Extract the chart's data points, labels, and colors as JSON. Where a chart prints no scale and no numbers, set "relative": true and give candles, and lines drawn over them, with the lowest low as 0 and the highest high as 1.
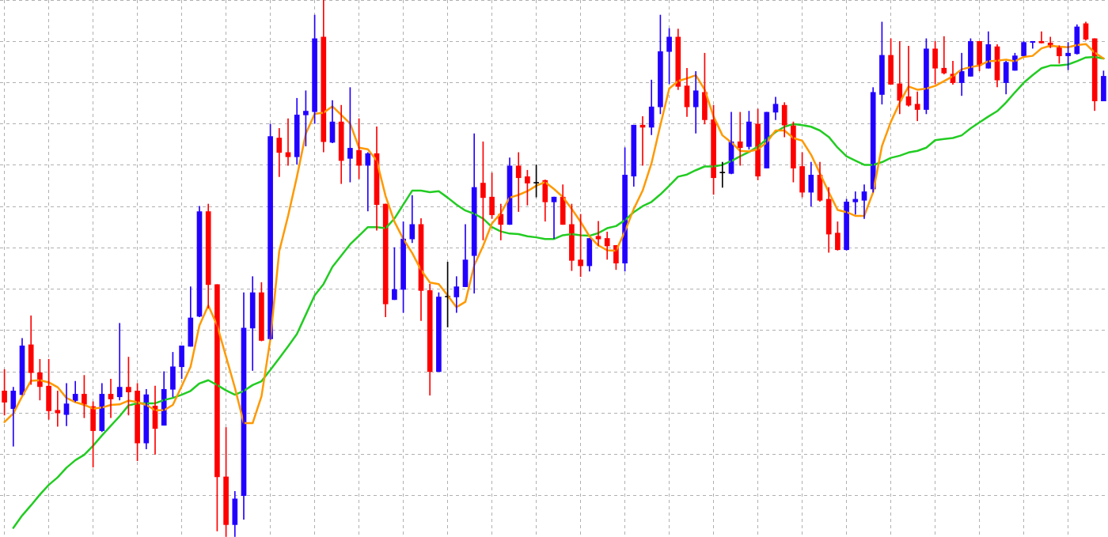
{
  "chart_data": {
    "type": "candlestick",
    "relative": true,
    "grid": true,
    "tick_labels": false,
    "marker": "none",
    "categories": [
      null,
      null,
      null,
      null,
      null,
      null,
      null,
      null,
      null,
      null,
      null,
      null,
      null,
      null,
      null,
      null,
      null,
      null,
      null,
      null,
      null,
      null,
      null,
      null,
      null,
      null,
      null,
      null,
      null,
      null,
      null,
      null,
      null,
      null,
      null,
      null,
      null,
      null,
      null,
      null,
      null,
      null,
      null,
      null,
      null,
      null,
      null,
      null,
      null,
      null,
      null,
      null,
      null,
      null,
      null,
      null,
      null,
      null,
      null,
      null,
      null,
      null,
      null,
      null,
      null,
      null,
      null,
      null,
      null,
      null,
      null,
      null,
      null,
      null,
      null,
      null,
      null,
      null,
      null,
      null,
      null,
      null,
      null,
      null,
      null,
      null,
      null,
      null,
      null,
      null,
      null,
      null,
      null,
      null,
      null,
      null,
      null,
      null,
      null,
      null,
      null,
      null,
      null,
      null,
      null,
      null,
      null,
      null,
      null,
      null,
      null,
      null,
      null,
      null,
      null,
      null,
      null,
      null,
      null,
      null,
      null,
      null,
      null,
      null,
      null
    ],
    "ohlc": [
      [
        0.272,
        0.312,
        0.227,
        0.251
      ],
      [
        0.239,
        0.279,
        0.169,
        0.272
      ],
      [
        0.265,
        0.37,
        0.265,
        0.356
      ],
      [
        0.358,
        0.412,
        0.284,
        0.306
      ],
      [
        0.306,
        0.331,
        0.255,
        0.28
      ],
      [
        0.281,
        0.331,
        0.219,
        0.235
      ],
      [
        0.236,
        0.272,
        0.206,
        0.231
      ],
      [
        0.228,
        0.286,
        0.207,
        0.248
      ],
      [
        0.254,
        0.29,
        0.252,
        0.266
      ],
      [
        0.266,
        0.301,
        0.222,
        0.247
      ],
      [
        0.243,
        0.252,
        0.13,
        0.198
      ],
      [
        0.198,
        0.286,
        0.196,
        0.266
      ],
      [
        0.266,
        0.294,
        0.222,
        0.257
      ],
      [
        0.261,
        0.398,
        0.255,
        0.279
      ],
      [
        0.279,
        0.335,
        0.227,
        0.27
      ],
      [
        0.272,
        0.286,
        0.142,
        0.175
      ],
      [
        0.175,
        0.275,
        0.164,
        0.265
      ],
      [
        0.244,
        0.281,
        0.154,
        0.202
      ],
      [
        0.208,
        0.308,
        0.208,
        0.275
      ],
      [
        0.275,
        0.344,
        0.261,
        0.317
      ],
      [
        0.317,
        0.356,
        0.295,
        0.356
      ],
      [
        0.355,
        0.466,
        0.355,
        0.408
      ],
      [
        0.411,
        0.616,
        0.41,
        0.606
      ],
      [
        0.606,
        0.62,
        0.426,
        0.47
      ],
      [
        0.47,
        0.47,
        0.011,
        0.112
      ],
      [
        0.112,
        0.204,
        0,
        0.023
      ],
      [
        0.023,
        0.085,
        0,
        0.071
      ],
      [
        0.077,
        0.455,
        0.033,
        0.389
      ],
      [
        0.389,
        0.485,
        0.31,
        0.455
      ],
      [
        0.455,
        0.474,
        0.365,
        0.366
      ],
      [
        0.369,
        0.769,
        0.368,
        0.746
      ],
      [
        0.743,
        0.761,
        0.671,
        0.716
      ],
      [
        0.716,
        0.779,
        0.692,
        0.708
      ],
      [
        0.708,
        0.817,
        0.694,
        0.786
      ],
      [
        0.786,
        0.831,
        0.728,
        0.793
      ],
      [
        0.792,
        0.972,
        0.77,
        0.928
      ],
      [
        0.931,
        1,
        0.717,
        0.736
      ],
      [
        0.735,
        0.813,
        0.734,
        0.773
      ],
      [
        0.773,
        0.804,
        0.658,
        0.701
      ],
      [
        0.705,
        0.837,
        0.661,
        0.724
      ],
      [
        0.72,
        0.779,
        0.667,
        0.692
      ],
      [
        0.692,
        0.716,
        0.607,
        0.714
      ],
      [
        0.714,
        0.764,
        0.571,
        0.619
      ],
      [
        0.62,
        0.62,
        0.41,
        0.434
      ],
      [
        0.442,
        0.539,
        0.442,
        0.461
      ],
      [
        0.461,
        0.587,
        0.418,
        0.555
      ],
      [
        0.555,
        0.636,
        0.548,
        0.582
      ],
      [
        0.582,
        0.593,
        0.403,
        0.459
      ],
      [
        0.459,
        0.471,
        0.264,
        0.308
      ],
      [
        0.308,
        0.455,
        0.308,
        0.447
      ],
      [
        0.447,
        0.512,
        0.391,
        0.447
      ],
      [
        0.447,
        0.485,
        0.418,
        0.466
      ],
      [
        0.466,
        0.582,
        0.466,
        0.516
      ],
      [
        0.524,
        0.751,
        0.454,
        0.651
      ],
      [
        0.659,
        0.736,
        0.553,
        0.632
      ],
      [
        0.633,
        0.678,
        0.593,
        0.6
      ],
      [
        0.601,
        0.62,
        0.553,
        0.582
      ],
      [
        0.582,
        0.706,
        0.582,
        0.691
      ],
      [
        0.691,
        0.716,
        0.606,
        0.669
      ],
      [
        0.671,
        0.683,
        0.618,
        0.659
      ],
      [
        0.659,
        0.693,
        0.633,
        0.659
      ],
      [
        0.664,
        0.665,
        0.588,
        0.624
      ],
      [
        0.624,
        0.633,
        0.556,
        0.633
      ],
      [
        0.633,
        0.656,
        0.582,
        0.582
      ],
      [
        0.582,
        0.62,
        0.496,
        0.515
      ],
      [
        0.516,
        0.601,
        0.485,
        0.505
      ],
      [
        0.505,
        0.556,
        0.495,
        0.556
      ],
      [
        0.56,
        0.588,
        0.543,
        0.555
      ],
      [
        0.556,
        0.568,
        0.517,
        0.542
      ],
      [
        0.543,
        0.543,
        0.498,
        0.51
      ],
      [
        0.51,
        0.725,
        0.495,
        0.674
      ],
      [
        0.672,
        0.767,
        0.653,
        0.767
      ],
      [
        0.767,
        0.783,
        0.692,
        0.763
      ],
      [
        0.763,
        0.851,
        0.749,
        0.801
      ],
      [
        0.801,
        0.972,
        0.788,
        0.904
      ],
      [
        0.904,
        0.947,
        0.844,
        0.931
      ],
      [
        0.931,
        0.946,
        0.833,
        0.839
      ],
      [
        0.84,
        0.873,
        0.783,
        0.801
      ],
      [
        0.801,
        0.867,
        0.752,
        0.831
      ],
      [
        0.828,
        0.901,
        0.769,
        0.777
      ],
      [
        0.777,
        0.804,
        0.638,
        0.669
      ],
      [
        0.678,
        0.698,
        0.651,
        0.678
      ],
      [
        0.677,
        0.791,
        0.676,
        0.736
      ],
      [
        0.736,
        0.791,
        0.692,
        0.725
      ],
      [
        0.727,
        0.793,
        0.722,
        0.773
      ],
      [
        0.769,
        0.797,
        0.665,
        0.672
      ],
      [
        0.687,
        0.791,
        0.687,
        0.791
      ],
      [
        0.791,
        0.819,
        0.777,
        0.806
      ],
      [
        0.804,
        0.809,
        0.745,
        0.767
      ],
      [
        0.766,
        0.773,
        0.661,
        0.687
      ],
      [
        0.69,
        0.716,
        0.633,
        0.642
      ],
      [
        0.642,
        0.698,
        0.616,
        0.674
      ],
      [
        0.674,
        0.698,
        0.625,
        0.627
      ],
      [
        0.629,
        0.651,
        0.53,
        0.564
      ],
      [
        0.566,
        0.587,
        0.534,
        0.535
      ],
      [
        0.535,
        0.629,
        0.534,
        0.624
      ],
      [
        0.624,
        0.643,
        0.601,
        0.629
      ],
      [
        0.627,
        0.656,
        0.593,
        0.643
      ],
      [
        0.648,
        0.837,
        0.642,
        0.828
      ],
      [
        0.824,
        0.959,
        0.806,
        0.897
      ],
      [
        0.897,
        0.928,
        0.843,
        0.843
      ],
      [
        0.844,
        0.923,
        0.788,
        0.813
      ],
      [
        0.82,
        0.914,
        0.802,
        0.804
      ],
      [
        0.806,
        0.829,
        0.775,
        0.796
      ],
      [
        0.796,
        0.928,
        0.788,
        0.909
      ],
      [
        0.909,
        0.923,
        0.844,
        0.873
      ],
      [
        0.873,
        0.932,
        0.862,
        0.864
      ],
      [
        0.862,
        0.886,
        0.843,
        0.846
      ],
      [
        0.846,
        0.901,
        0.822,
        0.867
      ],
      [
        0.858,
        0.928,
        0.858,
        0.923
      ],
      [
        0.923,
        0.923,
        0.868,
        0.878
      ],
      [
        0.873,
        0.941,
        0.873,
        0.917
      ],
      [
        0.913,
        0.917,
        0.838,
        0.851
      ],
      [
        0.846,
        0.886,
        0.825,
        0.884
      ],
      [
        0.869,
        0.901,
        0.869,
        0.896
      ],
      [
        0.896,
        0.923,
        0.896,
        0.921
      ],
      [
        0.921,
        0.923,
        0.91,
        0.923
      ],
      [
        0.923,
        0.941,
        0.92,
        0.92
      ],
      [
        0.92,
        0.931,
        0.911,
        0.913
      ],
      [
        0.913,
        0.915,
        0.882,
        0.896
      ],
      [
        0.896,
        0.921,
        0.87,
        0.901
      ],
      [
        0.9,
        0.954,
        0.899,
        0.95
      ],
      [
        0.956,
        0.959,
        0.925,
        0.927
      ],
      [
        0.928,
        0.928,
        0.794,
        0.812
      ],
      [
        0.812,
        0.868,
        0.812,
        0.858
      ]
    ],
    "colors": [
      "#ff0000",
      "#2200ff",
      "#2200ff",
      "#ff0000",
      "#ff0000",
      "#ff0000",
      "#ff0000",
      "#2200ff",
      "#2200ff",
      "#ff0000",
      "#ff0000",
      "#2200ff",
      "#ff0000",
      "#2200ff",
      "#ff0000",
      "#ff0000",
      "#2200ff",
      "#ff0000",
      "#2200ff",
      "#2200ff",
      "#2200ff",
      "#2200ff",
      "#2200ff",
      "#ff0000",
      "#ff0000",
      "#ff0000",
      "#2200ff",
      "#2200ff",
      "#2200ff",
      "#ff0000",
      "#2200ff",
      "#ff0000",
      "#ff0000",
      "#2200ff",
      "#2200ff",
      "#2200ff",
      "#ff0000",
      "#2200ff",
      "#ff0000",
      "#2200ff",
      "#ff0000",
      "#2200ff",
      "#ff0000",
      "#ff0000",
      "#2200ff",
      "#2200ff",
      "#2200ff",
      "#ff0000",
      "#ff0000",
      "#2200ff",
      "#000000",
      "#2200ff",
      "#2200ff",
      "#2200ff",
      "#ff0000",
      "#ff0000",
      "#ff0000",
      "#2200ff",
      "#ff0000",
      "#ff0000",
      "#000000",
      "#ff0000",
      "#2200ff",
      "#ff0000",
      "#ff0000",
      "#ff0000",
      "#2200ff",
      "#ff0000",
      "#ff0000",
      "#ff0000",
      "#2200ff",
      "#2200ff",
      "#ff0000",
      "#2200ff",
      "#2200ff",
      "#2200ff",
      "#ff0000",
      "#ff0000",
      "#2200ff",
      "#ff0000",
      "#ff0000",
      "#000000",
      "#2200ff",
      "#ff0000",
      "#2200ff",
      "#ff0000",
      "#2200ff",
      "#2200ff",
      "#ff0000",
      "#ff0000",
      "#ff0000",
      "#2200ff",
      "#ff0000",
      "#ff0000",
      "#ff0000",
      "#2200ff",
      "#2200ff",
      "#2200ff",
      "#2200ff",
      "#2200ff",
      "#ff0000",
      "#ff0000",
      "#ff0000",
      "#ff0000",
      "#2200ff",
      "#ff0000",
      "#ff0000",
      "#ff0000",
      "#2200ff",
      "#2200ff",
      "#ff0000",
      "#2200ff",
      "#ff0000",
      "#2200ff",
      "#2200ff",
      "#2200ff",
      "#2200ff",
      "#ff0000",
      "#ff0000",
      "#ff0000",
      "#2200ff",
      "#2200ff",
      "#ff0000",
      "#ff0000",
      "#2200ff"
    ],
    "series": [
      {
        "type": "line",
        "color": "#ff9900",
        "values": [
          0.214,
          0.23,
          0.262,
          0.291,
          0.292,
          0.288,
          0.279,
          0.259,
          0.251,
          0.246,
          0.239,
          0.241,
          0.246,
          0.247,
          0.254,
          0.251,
          0.246,
          0.236,
          0.236,
          0.246,
          0.281,
          0.317,
          0.394,
          0.431,
          0.394,
          0.336,
          0.278,
          0.212,
          0.212,
          0.262,
          0.368,
          0.532,
          0.598,
          0.671,
          0.751,
          0.788,
          0.79,
          0.802,
          0.786,
          0.77,
          0.725,
          0.722,
          0.701,
          0.635,
          0.587,
          0.555,
          0.529,
          0.497,
          0.474,
          0.471,
          0.45,
          0.428,
          0.438,
          0.506,
          0.542,
          0.584,
          0.603,
          0.632,
          0.637,
          0.644,
          0.654,
          0.661,
          0.648,
          0.633,
          0.611,
          0.587,
          0.56,
          0.543,
          0.534,
          0.533,
          0.569,
          0.611,
          0.645,
          0.696,
          0.767,
          0.835,
          0.849,
          0.854,
          0.86,
          0.833,
          0.783,
          0.748,
          0.735,
          0.719,
          0.718,
          0.722,
          0.735,
          0.757,
          0.757,
          0.743,
          0.738,
          0.712,
          0.677,
          0.642,
          0.609,
          0.605,
          0.598,
          0.598,
          0.642,
          0.728,
          0.773,
          0.809,
          0.839,
          0.833,
          0.835,
          0.84,
          0.849,
          0.858,
          0.871,
          0.875,
          0.878,
          0.886,
          0.887,
          0.889,
          0.886,
          0.894,
          0.896,
          0.91,
          0.915,
          0.913,
          0.912,
          0.916,
          0.918,
          0.902,
          0.891
        ]
      },
      {
        "type": "line",
        "color": "#22cc22",
        "values": [
          null,
          0.017,
          0.04,
          0.059,
          0.079,
          0.097,
          0.111,
          0.129,
          0.143,
          0.153,
          0.17,
          0.189,
          0.207,
          0.225,
          0.245,
          0.249,
          0.249,
          0.249,
          0.255,
          0.259,
          0.265,
          0.272,
          0.286,
          0.292,
          0.283,
          0.273,
          0.265,
          0.272,
          0.283,
          0.29,
          0.311,
          0.333,
          0.355,
          0.378,
          0.414,
          0.45,
          0.471,
          0.503,
          0.524,
          0.545,
          0.561,
          0.577,
          0.577,
          0.575,
          0.593,
          0.619,
          0.645,
          0.645,
          0.642,
          0.644,
          0.632,
          0.619,
          0.608,
          0.602,
          0.593,
          0.577,
          0.569,
          0.565,
          0.564,
          0.56,
          0.558,
          0.555,
          0.555,
          0.562,
          0.564,
          0.562,
          0.561,
          0.566,
          0.575,
          0.579,
          0.59,
          0.605,
          0.616,
          0.624,
          0.638,
          0.654,
          0.671,
          0.675,
          0.683,
          0.69,
          0.69,
          0.693,
          0.7,
          0.709,
          0.717,
          0.727,
          0.741,
          0.754,
          0.764,
          0.769,
          0.767,
          0.764,
          0.757,
          0.745,
          0.725,
          0.709,
          0.701,
          0.693,
          0.693,
          0.698,
          0.706,
          0.71,
          0.716,
          0.719,
          0.725,
          0.739,
          0.741,
          0.743,
          0.748,
          0.761,
          0.772,
          0.783,
          0.793,
          0.809,
          0.828,
          0.846,
          0.86,
          0.873,
          0.878,
          0.878,
          0.88,
          0.886,
          0.893,
          0.894,
          0.891
        ]
      }
    ]
  }
}
